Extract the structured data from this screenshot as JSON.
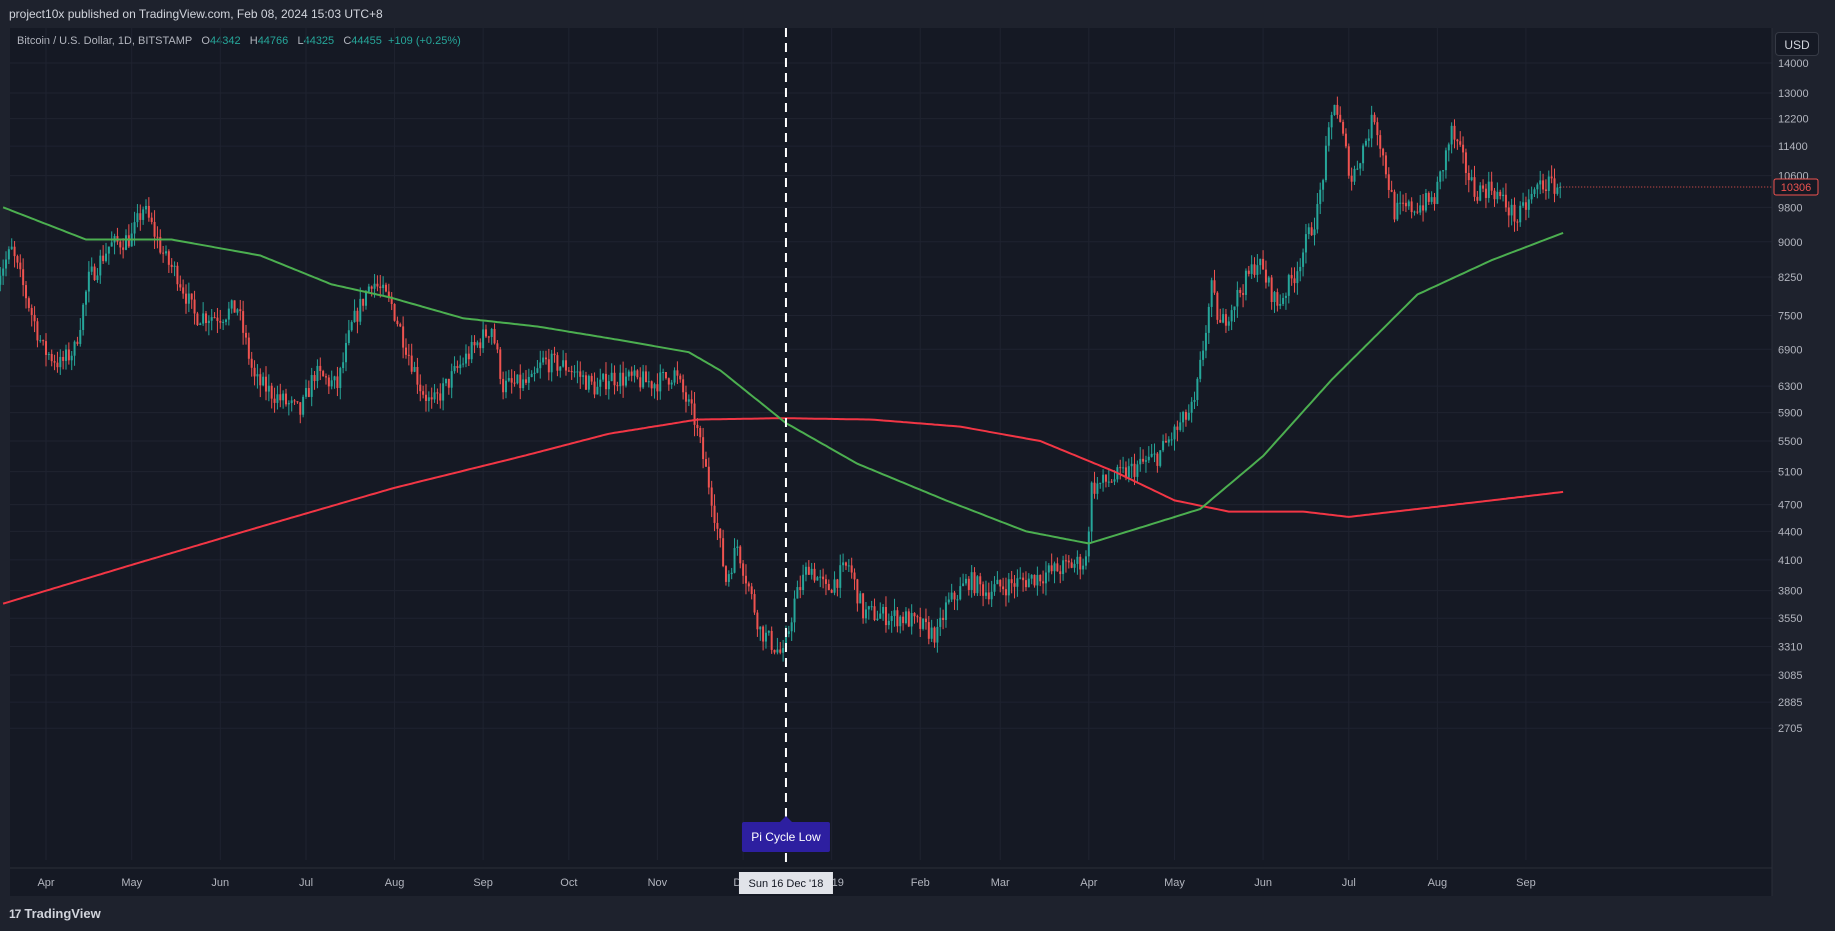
{
  "header": {
    "published": "project10x published on TradingView.com, Feb 08, 2024 15:03 UTC+8"
  },
  "symbol": {
    "name": "Bitcoin / U.S. Dollar, 1D, BITSTAMP",
    "o_label": "O",
    "o_value": "44342",
    "h_label": "H",
    "h_value": "44766",
    "l_label": "L",
    "l_value": "44325",
    "c_label": "C",
    "c_value": "44455",
    "change": "+109 (+0.25%)"
  },
  "currency_button": "USD",
  "footer": {
    "brand": "TradingView",
    "brand_mark": "17"
  },
  "colors": {
    "up": "#26a69a",
    "down": "#ef5350",
    "ma_fast": "#4caf50",
    "ma_slow": "#f23645",
    "background": "#151924",
    "annotation": "#2d1fa0"
  },
  "chart_data": {
    "type": "candlestick",
    "scale": "log",
    "price_ticks": [
      14000,
      13000,
      12200,
      11400,
      10600,
      9800,
      9000,
      8250,
      7500,
      6900,
      6300,
      5900,
      5500,
      5100,
      4700,
      4400,
      4100,
      3800,
      3550,
      3310,
      3085,
      2885,
      2705
    ],
    "time_labels": [
      {
        "date": "2018-04-01",
        "label": "Apr"
      },
      {
        "date": "2018-05-01",
        "label": "May"
      },
      {
        "date": "2018-06-01",
        "label": "Jun"
      },
      {
        "date": "2018-07-01",
        "label": "Jul"
      },
      {
        "date": "2018-08-01",
        "label": "Aug"
      },
      {
        "date": "2018-09-01",
        "label": "Sep"
      },
      {
        "date": "2018-10-01",
        "label": "Oct"
      },
      {
        "date": "2018-11-01",
        "label": "Nov"
      },
      {
        "date": "2018-12-01",
        "label": "Dec"
      },
      {
        "date": "2019-01-01",
        "label": "2019"
      },
      {
        "date": "2019-02-01",
        "label": "Feb"
      },
      {
        "date": "2019-03-01",
        "label": "Mar"
      },
      {
        "date": "2019-04-01",
        "label": "Apr"
      },
      {
        "date": "2019-05-01",
        "label": "May"
      },
      {
        "date": "2019-06-01",
        "label": "Jun"
      },
      {
        "date": "2019-07-01",
        "label": "Jul"
      },
      {
        "date": "2019-08-01",
        "label": "Aug"
      },
      {
        "date": "2019-09-01",
        "label": "Sep"
      }
    ],
    "price_path": [
      {
        "date": "2018-03-15",
        "close": 8300
      },
      {
        "date": "2018-03-20",
        "close": 8800
      },
      {
        "date": "2018-03-31",
        "close": 6900
      },
      {
        "date": "2018-04-06",
        "close": 6650
      },
      {
        "date": "2018-04-11",
        "close": 6900
      },
      {
        "date": "2018-04-16",
        "close": 8200
      },
      {
        "date": "2018-04-23",
        "close": 8900
      },
      {
        "date": "2018-05-01",
        "close": 9100
      },
      {
        "date": "2018-05-05",
        "close": 9800
      },
      {
        "date": "2018-05-09",
        "close": 9200
      },
      {
        "date": "2018-05-13",
        "close": 8600
      },
      {
        "date": "2018-05-17",
        "close": 8300
      },
      {
        "date": "2018-05-23",
        "close": 7500
      },
      {
        "date": "2018-06-01",
        "close": 7500
      },
      {
        "date": "2018-06-07",
        "close": 7650
      },
      {
        "date": "2018-06-13",
        "close": 6400
      },
      {
        "date": "2018-06-22",
        "close": 6100
      },
      {
        "date": "2018-06-29",
        "close": 5900
      },
      {
        "date": "2018-07-04",
        "close": 6500
      },
      {
        "date": "2018-07-12",
        "close": 6300
      },
      {
        "date": "2018-07-17",
        "close": 7300
      },
      {
        "date": "2018-07-24",
        "close": 8200
      },
      {
        "date": "2018-07-31",
        "close": 7700
      },
      {
        "date": "2018-08-10",
        "close": 6300
      },
      {
        "date": "2018-08-14",
        "close": 6000
      },
      {
        "date": "2018-08-25",
        "close": 6700
      },
      {
        "date": "2018-09-04",
        "close": 7300
      },
      {
        "date": "2018-09-08",
        "close": 6300
      },
      {
        "date": "2018-09-18",
        "close": 6350
      },
      {
        "date": "2018-09-22",
        "close": 6700
      },
      {
        "date": "2018-10-01",
        "close": 6600
      },
      {
        "date": "2018-10-11",
        "close": 6250
      },
      {
        "date": "2018-10-15",
        "close": 6450
      },
      {
        "date": "2018-10-31",
        "close": 6350
      },
      {
        "date": "2018-11-07",
        "close": 6500
      },
      {
        "date": "2018-11-14",
        "close": 5800
      },
      {
        "date": "2018-11-20",
        "close": 4800
      },
      {
        "date": "2018-11-25",
        "close": 3900
      },
      {
        "date": "2018-11-29",
        "close": 4250
      },
      {
        "date": "2018-12-07",
        "close": 3450
      },
      {
        "date": "2018-12-15",
        "close": 3230
      },
      {
        "date": "2018-12-19",
        "close": 3700
      },
      {
        "date": "2018-12-24",
        "close": 4050
      },
      {
        "date": "2018-12-30",
        "close": 3800
      },
      {
        "date": "2019-01-07",
        "close": 4050
      },
      {
        "date": "2019-01-12",
        "close": 3600
      },
      {
        "date": "2019-01-27",
        "close": 3550
      },
      {
        "date": "2019-02-07",
        "close": 3400
      },
      {
        "date": "2019-02-10",
        "close": 3650
      },
      {
        "date": "2019-02-18",
        "close": 3900
      },
      {
        "date": "2019-02-24",
        "close": 3800
      },
      {
        "date": "2019-03-10",
        "close": 3900
      },
      {
        "date": "2019-03-31",
        "close": 4100
      },
      {
        "date": "2019-04-02",
        "close": 4900
      },
      {
        "date": "2019-04-12",
        "close": 5050
      },
      {
        "date": "2019-04-25",
        "close": 5300
      },
      {
        "date": "2019-05-08",
        "close": 6000
      },
      {
        "date": "2019-05-14",
        "close": 8000
      },
      {
        "date": "2019-05-17",
        "close": 7300
      },
      {
        "date": "2019-05-30",
        "close": 8600
      },
      {
        "date": "2019-06-06",
        "close": 7700
      },
      {
        "date": "2019-06-12",
        "close": 8300
      },
      {
        "date": "2019-06-20",
        "close": 9700
      },
      {
        "date": "2019-06-26",
        "close": 12800
      },
      {
        "date": "2019-07-02",
        "close": 10500
      },
      {
        "date": "2019-07-10",
        "close": 12300
      },
      {
        "date": "2019-07-17",
        "close": 9700
      },
      {
        "date": "2019-07-24",
        "close": 9800
      },
      {
        "date": "2019-07-31",
        "close": 10000
      },
      {
        "date": "2019-08-06",
        "close": 11800
      },
      {
        "date": "2019-08-14",
        "close": 10200
      },
      {
        "date": "2019-08-20",
        "close": 10300
      },
      {
        "date": "2019-08-29",
        "close": 9500
      },
      {
        "date": "2019-09-06",
        "close": 10400
      },
      {
        "date": "2019-09-13",
        "close": 10306
      }
    ],
    "ma_fast": [
      {
        "date": "2018-03-17",
        "value": 9800
      },
      {
        "date": "2018-04-15",
        "value": 9050
      },
      {
        "date": "2018-05-15",
        "value": 9050
      },
      {
        "date": "2018-06-15",
        "value": 8700
      },
      {
        "date": "2018-07-10",
        "value": 8100
      },
      {
        "date": "2018-07-30",
        "value": 7850
      },
      {
        "date": "2018-08-25",
        "value": 7450
      },
      {
        "date": "2018-09-20",
        "value": 7300
      },
      {
        "date": "2018-10-20",
        "value": 7050
      },
      {
        "date": "2018-11-12",
        "value": 6850
      },
      {
        "date": "2018-11-23",
        "value": 6550
      },
      {
        "date": "2018-12-16",
        "value": 5750
      },
      {
        "date": "2019-01-10",
        "value": 5200
      },
      {
        "date": "2019-02-10",
        "value": 4750
      },
      {
        "date": "2019-03-10",
        "value": 4400
      },
      {
        "date": "2019-04-01",
        "value": 4270
      },
      {
        "date": "2019-04-20",
        "value": 4450
      },
      {
        "date": "2019-05-10",
        "value": 4650
      },
      {
        "date": "2019-06-01",
        "value": 5300
      },
      {
        "date": "2019-06-25",
        "value": 6400
      },
      {
        "date": "2019-07-25",
        "value": 7900
      },
      {
        "date": "2019-08-20",
        "value": 8600
      },
      {
        "date": "2019-09-14",
        "value": 9200
      }
    ],
    "ma_slow": [
      {
        "date": "2018-03-17",
        "value": 3680
      },
      {
        "date": "2018-05-01",
        "value": 4050
      },
      {
        "date": "2018-06-15",
        "value": 4450
      },
      {
        "date": "2018-08-01",
        "value": 4900
      },
      {
        "date": "2018-09-15",
        "value": 5300
      },
      {
        "date": "2018-10-15",
        "value": 5600
      },
      {
        "date": "2018-11-15",
        "value": 5800
      },
      {
        "date": "2018-12-15",
        "value": 5820
      },
      {
        "date": "2019-01-15",
        "value": 5800
      },
      {
        "date": "2019-02-15",
        "value": 5700
      },
      {
        "date": "2019-03-15",
        "value": 5500
      },
      {
        "date": "2019-04-10",
        "value": 5100
      },
      {
        "date": "2019-05-01",
        "value": 4750
      },
      {
        "date": "2019-05-20",
        "value": 4620
      },
      {
        "date": "2019-06-15",
        "value": 4620
      },
      {
        "date": "2019-07-01",
        "value": 4560
      },
      {
        "date": "2019-07-25",
        "value": 4650
      },
      {
        "date": "2019-08-20",
        "value": 4750
      },
      {
        "date": "2019-09-14",
        "value": 4850
      }
    ],
    "last_price": {
      "value": 10306,
      "label": "10306"
    },
    "marker": {
      "date": "2018-12-16",
      "label": "Pi Cycle Low",
      "date_label": "Sun 16 Dec '18"
    }
  }
}
